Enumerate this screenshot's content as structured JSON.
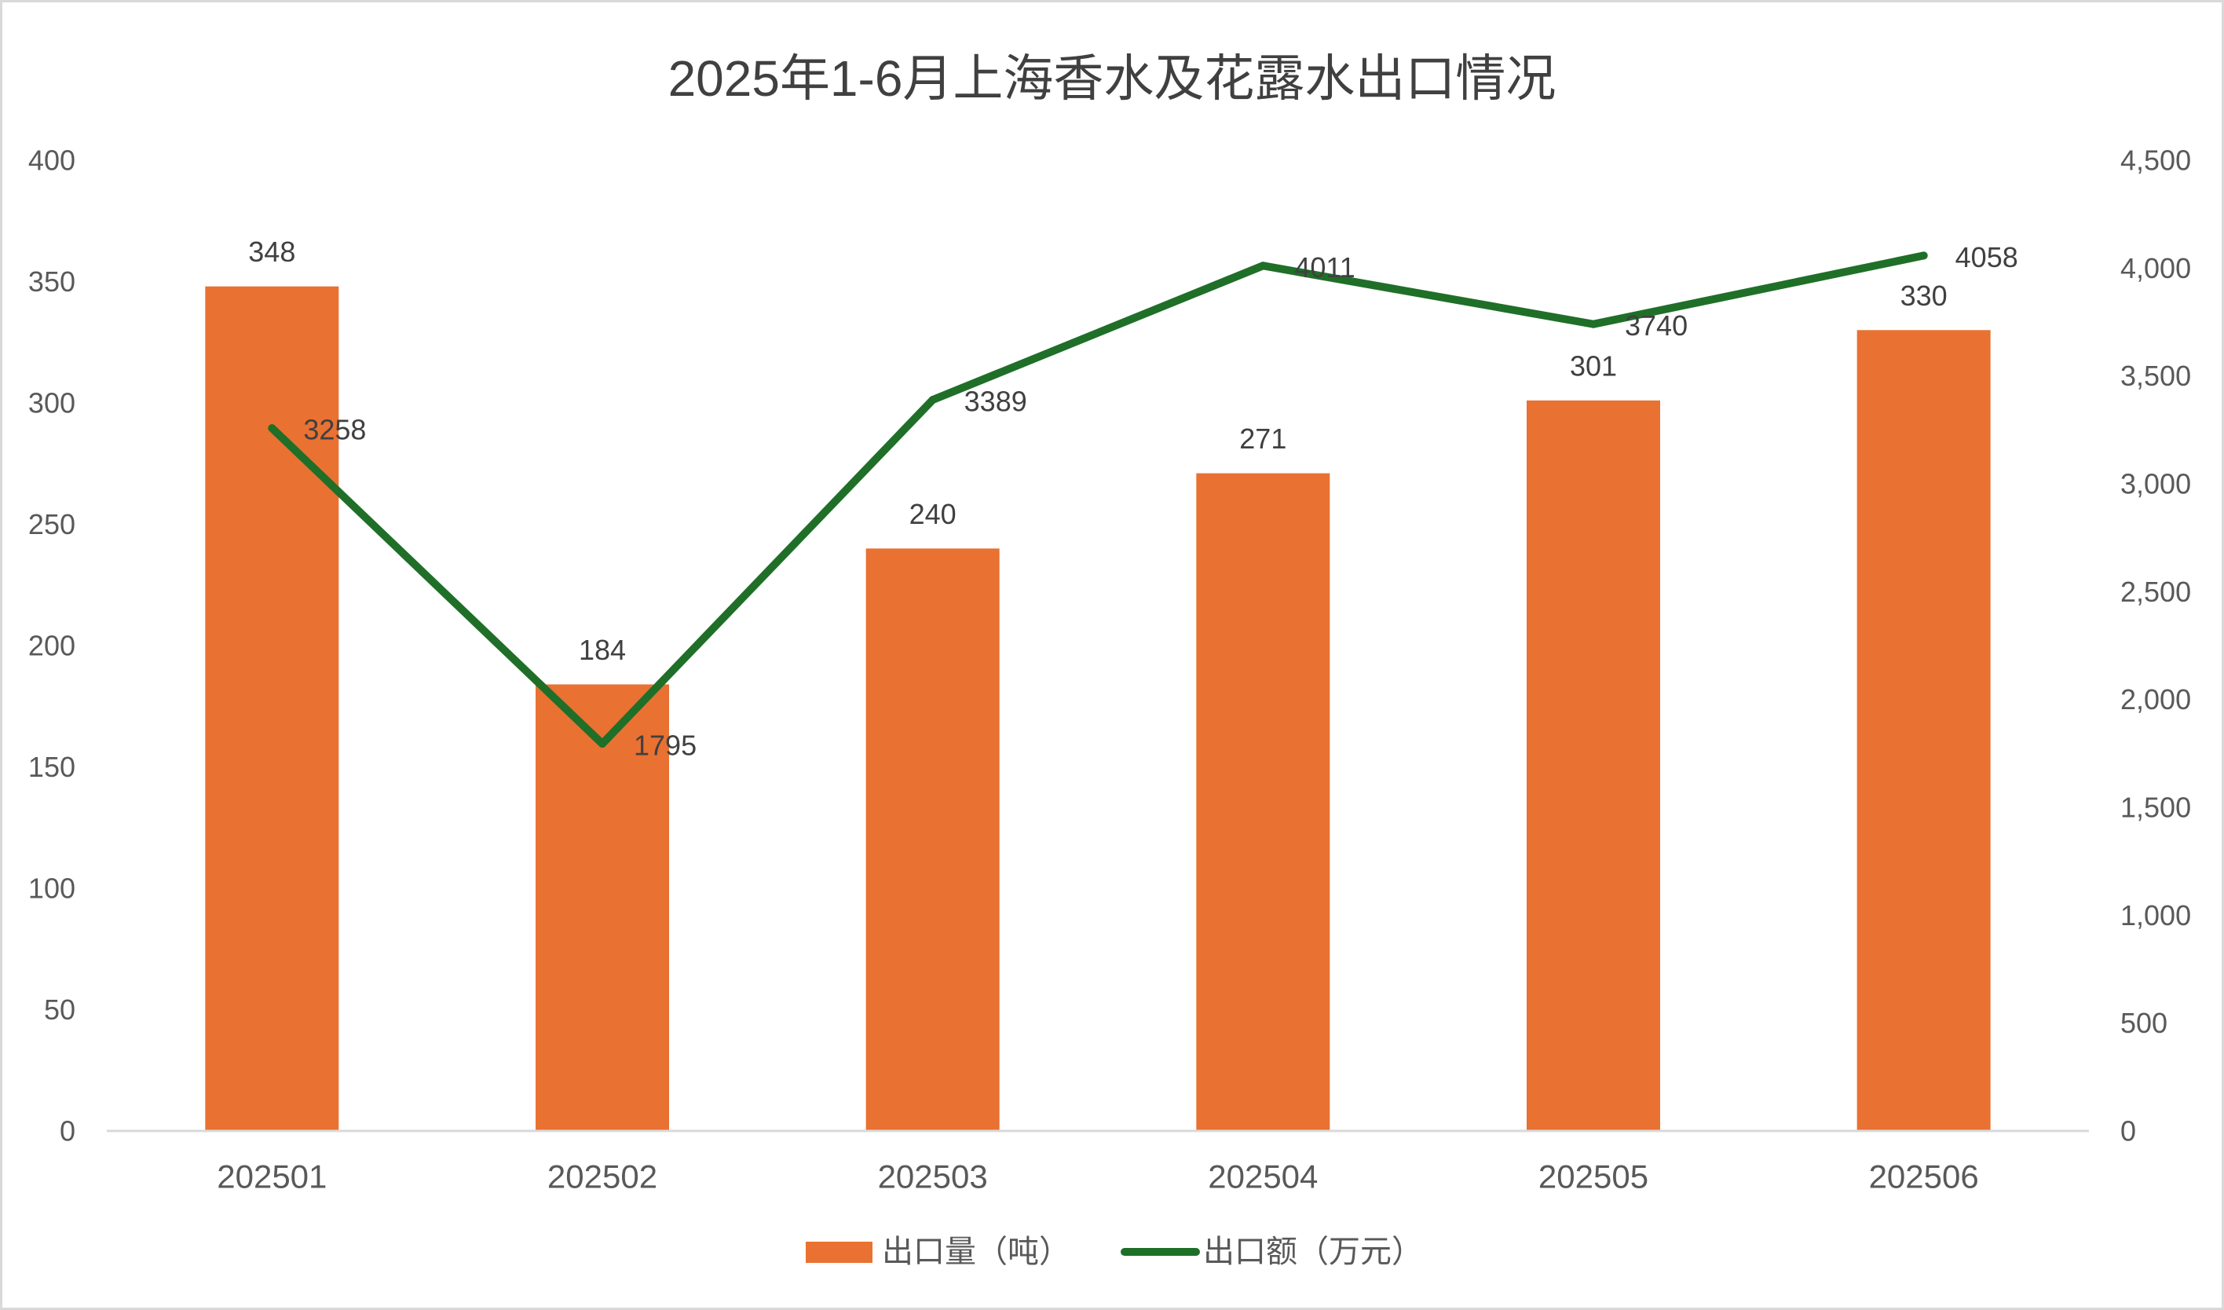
{
  "chart_data": {
    "type": "bar",
    "title": "2025年1-6月上海香水及花露水出口情况",
    "categories": [
      "202501",
      "202502",
      "202503",
      "202504",
      "202505",
      "202506"
    ],
    "series": [
      {
        "name": "出口量（吨）",
        "type": "bar",
        "axis": "left",
        "values": [
          348,
          184,
          240,
          271,
          301,
          330
        ],
        "color": "#E97132"
      },
      {
        "name": "出口额（万元）",
        "type": "line",
        "axis": "right",
        "values": [
          3258,
          1795,
          3389,
          4011,
          3740,
          4058
        ],
        "color": "#1F6F28"
      }
    ],
    "y_axis": {
      "range": [
        0,
        400
      ],
      "tick_labels": [
        "0",
        "50",
        "100",
        "150",
        "200",
        "250",
        "300",
        "350",
        "400"
      ]
    },
    "y2_axis": {
      "range": [
        0,
        4500
      ],
      "tick_labels": [
        "0",
        "500",
        "1,000",
        "1,500",
        "2,000",
        "2,500",
        "3,000",
        "3,500",
        "4,000",
        "4,500"
      ]
    },
    "grid": false,
    "legend": "bottom-center",
    "data_labels": true
  }
}
